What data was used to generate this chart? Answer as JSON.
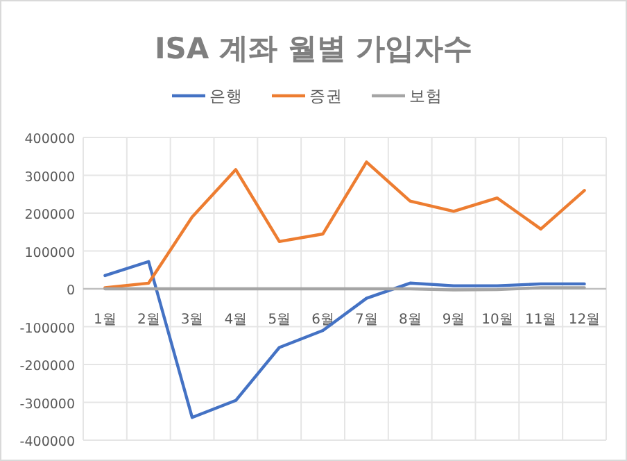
{
  "chart_data": {
    "type": "line",
    "title": "ISA 계좌 월별 가입자수",
    "categories": [
      "1월",
      "2월",
      "3월",
      "4월",
      "5월",
      "6월",
      "7월",
      "8월",
      "9월",
      "10월",
      "11월",
      "12월"
    ],
    "series": [
      {
        "name": "은행",
        "color": "#4472c4",
        "values": [
          35000,
          72000,
          -340000,
          -295000,
          -155000,
          -110000,
          -25000,
          15000,
          8000,
          8000,
          13000,
          13000
        ]
      },
      {
        "name": "증권",
        "color": "#ed7d31",
        "values": [
          3000,
          15000,
          190000,
          315000,
          125000,
          145000,
          335000,
          232000,
          205000,
          240000,
          158000,
          260000
        ]
      },
      {
        "name": "보험",
        "color": "#a5a5a5",
        "values": [
          0,
          0,
          0,
          0,
          0,
          0,
          0,
          0,
          -3000,
          -2000,
          3000,
          3000
        ]
      }
    ],
    "ylim": [
      -400000,
      400000
    ],
    "yticks": [
      -400000,
      -300000,
      -200000,
      -100000,
      0,
      100000,
      200000,
      300000,
      400000
    ],
    "grid": true,
    "legend": "top",
    "line_style": "solid"
  }
}
